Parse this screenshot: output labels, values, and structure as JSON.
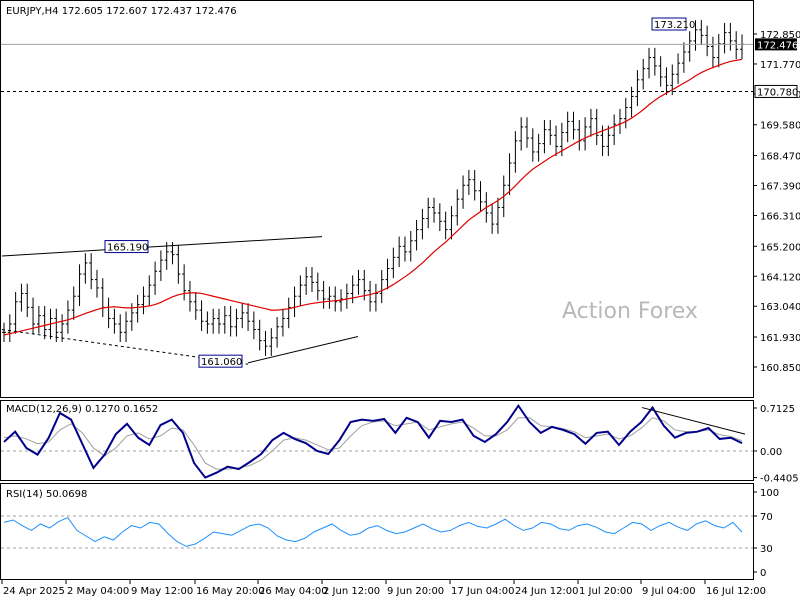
{
  "chart_data": {
    "type": "line",
    "symbol": "EURJPY",
    "timeframe": "H4",
    "ohlc_header": "EURJPY,H4  172.605 172.607 172.437 172.476",
    "watermark": "Action Forex",
    "price_panel": {
      "ylim": [
        160.85,
        173.5
      ],
      "y_ticks": [
        "172.850",
        "171.770",
        "170.690",
        "169.580",
        "168.470",
        "167.390",
        "166.310",
        "165.200",
        "164.120",
        "163.040",
        "161.930",
        "160.850"
      ],
      "current_price": "172.476",
      "level_line": "170.780",
      "annotations": [
        {
          "label": "173.210",
          "value": 173.21
        },
        {
          "label": "165.190",
          "value": 165.19
        },
        {
          "label": "161.060",
          "value": 161.06
        }
      ],
      "close_series": [
        162.1,
        162.4,
        163.2,
        163.5,
        163.0,
        162.4,
        162.7,
        162.2,
        162.6,
        162.1,
        162.4,
        162.9,
        163.4,
        164.2,
        164.6,
        164.0,
        163.7,
        163.0,
        162.6,
        162.4,
        162.1,
        162.5,
        162.8,
        163.1,
        163.4,
        163.8,
        164.3,
        164.7,
        165.0,
        164.9,
        164.2,
        163.6,
        163.2,
        162.9,
        162.5,
        162.4,
        162.6,
        162.4,
        162.7,
        162.3,
        162.6,
        162.8,
        162.5,
        162.2,
        161.8,
        161.6,
        161.9,
        162.3,
        162.6,
        163.0,
        163.4,
        163.8,
        164.1,
        163.9,
        163.6,
        163.3,
        163.4,
        163.2,
        163.3,
        163.5,
        163.8,
        164.0,
        163.6,
        163.2,
        163.5,
        164.0,
        164.4,
        164.8,
        165.2,
        165.0,
        165.4,
        165.8,
        166.2,
        166.6,
        166.4,
        166.1,
        165.8,
        166.3,
        166.9,
        167.4,
        167.6,
        167.2,
        166.8,
        166.4,
        166.0,
        166.6,
        167.4,
        168.2,
        169.0,
        169.5,
        169.1,
        168.6,
        168.9,
        169.4,
        169.2,
        168.8,
        169.3,
        169.7,
        169.4,
        169.0,
        169.5,
        169.8,
        169.2,
        168.8,
        169.2,
        169.6,
        169.8,
        170.2,
        170.6,
        171.2,
        171.6,
        172.0,
        171.7,
        171.3,
        171.0,
        171.4,
        171.8,
        172.2,
        172.6,
        173.0,
        172.8,
        172.4,
        172.0,
        172.5,
        172.9,
        172.6,
        172.3,
        172.48
      ],
      "ma_series": [
        162.0,
        162.05,
        162.1,
        162.15,
        162.2,
        162.25,
        162.3,
        162.35,
        162.4,
        162.45,
        162.5,
        162.55,
        162.62,
        162.7,
        162.78,
        162.85,
        162.92,
        162.98,
        163.0,
        163.02,
        163.0,
        162.98,
        162.98,
        163.0,
        163.02,
        163.05,
        163.1,
        163.18,
        163.28,
        163.38,
        163.45,
        163.5,
        163.52,
        163.52,
        163.5,
        163.45,
        163.4,
        163.35,
        163.3,
        163.25,
        163.2,
        163.15,
        163.1,
        163.05,
        163.0,
        162.95,
        162.9,
        162.9,
        162.92,
        162.95,
        163.0,
        163.05,
        163.1,
        163.14,
        163.17,
        163.2,
        163.22,
        163.24,
        163.26,
        163.3,
        163.34,
        163.38,
        163.42,
        163.46,
        163.52,
        163.6,
        163.7,
        163.82,
        163.96,
        164.1,
        164.25,
        164.42,
        164.6,
        164.8,
        165.0,
        165.18,
        165.35,
        165.55,
        165.75,
        165.95,
        166.15,
        166.3,
        166.45,
        166.6,
        166.72,
        166.85,
        167.0,
        167.18,
        167.38,
        167.6,
        167.8,
        167.98,
        168.12,
        168.26,
        168.4,
        168.52,
        168.64,
        168.76,
        168.88,
        169.0,
        169.1,
        169.2,
        169.28,
        169.36,
        169.44,
        169.52,
        169.6,
        169.7,
        169.82,
        169.96,
        170.12,
        170.3,
        170.46,
        170.6,
        170.72,
        170.84,
        170.96,
        171.08,
        171.2,
        171.34,
        171.46,
        171.56,
        171.64,
        171.72,
        171.8,
        171.86,
        171.9,
        171.94
      ]
    },
    "macd_panel": {
      "label": "MACD(12,26,9) 0.1270 0.1652",
      "ylim": [
        -0.52,
        0.78
      ],
      "y_ticks": [
        "0.7125",
        "0.00",
        "-0.4405"
      ],
      "main_series": [
        0.15,
        0.32,
        0.05,
        -0.06,
        0.22,
        0.63,
        0.52,
        0.12,
        -0.28,
        -0.06,
        0.28,
        0.45,
        0.22,
        0.1,
        0.43,
        0.52,
        0.3,
        -0.2,
        -0.44,
        -0.36,
        -0.26,
        -0.3,
        -0.18,
        -0.05,
        0.18,
        0.3,
        0.2,
        0.13,
        0.0,
        -0.05,
        0.18,
        0.48,
        0.52,
        0.5,
        0.53,
        0.3,
        0.55,
        0.48,
        0.22,
        0.5,
        0.48,
        0.52,
        0.25,
        0.15,
        0.28,
        0.48,
        0.75,
        0.48,
        0.3,
        0.4,
        0.35,
        0.28,
        0.12,
        0.3,
        0.32,
        0.1,
        0.32,
        0.48,
        0.72,
        0.42,
        0.22,
        0.3,
        0.32,
        0.38,
        0.2,
        0.22,
        0.13
      ],
      "signal_series": [
        0.22,
        0.25,
        0.2,
        0.12,
        0.15,
        0.35,
        0.45,
        0.3,
        0.05,
        -0.08,
        0.05,
        0.25,
        0.3,
        0.2,
        0.25,
        0.38,
        0.35,
        0.1,
        -0.2,
        -0.3,
        -0.3,
        -0.28,
        -0.24,
        -0.15,
        0.0,
        0.18,
        0.22,
        0.18,
        0.1,
        0.02,
        0.05,
        0.25,
        0.42,
        0.48,
        0.5,
        0.42,
        0.45,
        0.48,
        0.35,
        0.4,
        0.45,
        0.48,
        0.38,
        0.25,
        0.25,
        0.35,
        0.55,
        0.55,
        0.42,
        0.4,
        0.37,
        0.32,
        0.22,
        0.25,
        0.28,
        0.2,
        0.25,
        0.38,
        0.55,
        0.5,
        0.35,
        0.32,
        0.32,
        0.35,
        0.27,
        0.24,
        0.17
      ]
    },
    "rsi_panel": {
      "label": "RSI(14) 50.0698",
      "ylim": [
        0,
        100
      ],
      "y_ticks": [
        "100",
        "70",
        "30",
        "0"
      ],
      "levels": [
        70,
        30
      ],
      "series": [
        62,
        65,
        58,
        52,
        60,
        55,
        63,
        68,
        52,
        45,
        38,
        44,
        40,
        50,
        58,
        55,
        62,
        60,
        48,
        38,
        32,
        35,
        42,
        50,
        48,
        46,
        52,
        58,
        60,
        55,
        45,
        40,
        38,
        42,
        50,
        55,
        60,
        52,
        46,
        48,
        55,
        58,
        52,
        48,
        50,
        55,
        60,
        54,
        50,
        52,
        58,
        62,
        57,
        55,
        60,
        66,
        58,
        52,
        55,
        62,
        60,
        54,
        52,
        58,
        60,
        56,
        50,
        48,
        55,
        62,
        60,
        52,
        58,
        62,
        56,
        52,
        60,
        64,
        58,
        55,
        62,
        50
      ]
    },
    "x_labels": [
      "24 Apr 2025",
      "2 May 04:00",
      "9 May 12:00",
      "16 May 20:00",
      "26 May 04:00",
      "2 Jun 12:00",
      "9 Jun 20:00",
      "17 Jun 04:00",
      "24 Jun 12:00",
      "1 Jul 20:00",
      "9 Jul 04:00",
      "16 Jul 12:00"
    ],
    "colors": {
      "price": "#000000",
      "moving_average": "#e00000",
      "macd_main": "#00008b",
      "macd_signal": "#a0a0a0",
      "rsi": "#1e90ff",
      "price_tag_bg": "#000000",
      "level_tag_bg": "#ffffff",
      "annotation_border": "#00008b"
    }
  }
}
